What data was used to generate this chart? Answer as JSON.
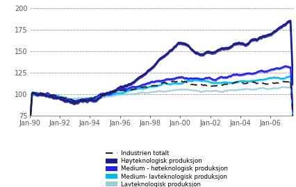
{
  "ylim": [
    75,
    205
  ],
  "yticks": [
    75,
    100,
    125,
    150,
    175,
    200
  ],
  "xlim_start": 1990.0,
  "xlim_end": 2007.5,
  "xtick_labels": [
    "Jan-90",
    "Jan-92",
    "Jan-94",
    "Jan-96",
    "Jan-98",
    "Jan-00",
    "Jan-02",
    "Jan-04",
    "Jan-06"
  ],
  "xtick_positions": [
    1990.0,
    1992.0,
    1994.0,
    1996.0,
    1998.0,
    2000.0,
    2002.0,
    2004.0,
    2006.0
  ],
  "grid_color": "#999999",
  "legend_entries": [
    "Industrien totalt",
    "Høyteknologisk produksjon",
    "Medium - høteknologisk produksjon",
    "Medium- lavteknologisk produksjon",
    "Lavteknologisk produksjon"
  ],
  "colors": {
    "industrien": "#222222",
    "hoy": "#1c1c8c",
    "medium_hoy": "#2222ee",
    "medium_lav": "#00bbee",
    "lav": "#99ccdd"
  },
  "background": "#ffffff"
}
